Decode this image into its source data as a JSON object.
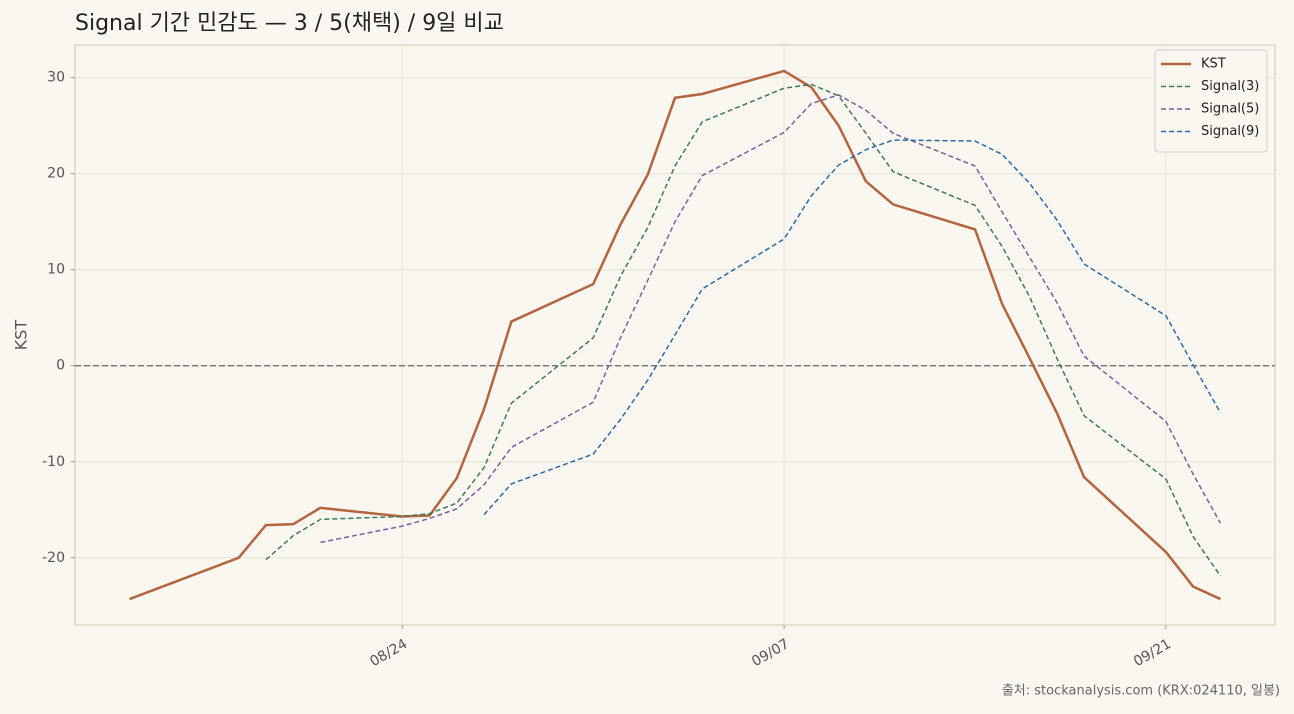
{
  "chart_data": {
    "type": "line",
    "title": "Signal 기간 민감도 — 3 / 5(채택) / 9일 비교",
    "y_label": "KST",
    "source": "출처: stockanalysis.com (KRX:024110, 일봉)",
    "x": [
      "08/14",
      "08/18",
      "08/19",
      "08/20",
      "08/21",
      "08/24",
      "08/25",
      "08/26",
      "08/27",
      "08/28",
      "08/31",
      "09/01",
      "09/02",
      "09/03",
      "09/04",
      "09/07",
      "09/08",
      "09/09",
      "09/10",
      "09/11",
      "09/14",
      "09/15",
      "09/16",
      "09/17",
      "09/18",
      "09/21",
      "09/22",
      "09/23"
    ],
    "series": [
      {
        "name": "KST",
        "color": "#b5643c",
        "dashed": false,
        "values": [
          -24.3,
          -20.0,
          -16.6,
          -16.5,
          -14.8,
          -15.7,
          -15.6,
          -11.7,
          -4.5,
          4.6,
          8.5,
          14.7,
          19.9,
          27.9,
          28.3,
          30.7,
          29.0,
          25.0,
          19.2,
          16.8,
          14.2,
          6.4,
          0.8,
          -4.9,
          -11.6,
          -19.4,
          -23.0,
          -24.3
        ]
      },
      {
        "name": "Signal(3)",
        "color": "#3d7a55",
        "dashed": true,
        "values": [
          null,
          null,
          -20.2,
          -17.7,
          -16.0,
          -15.7,
          -15.4,
          -14.3,
          -10.6,
          -3.9,
          2.9,
          9.3,
          14.4,
          20.8,
          25.4,
          28.9,
          29.3,
          28.1,
          24.2,
          20.2,
          16.7,
          12.4,
          7.2,
          0.8,
          -5.2,
          -11.8,
          -17.8,
          -21.9
        ]
      },
      {
        "name": "Signal(5)",
        "color": "#7a5fa0",
        "dashed": true,
        "values": [
          null,
          null,
          null,
          null,
          -18.4,
          -16.7,
          -15.9,
          -14.9,
          -12.4,
          -8.5,
          -3.8,
          2.9,
          8.9,
          15.0,
          19.8,
          24.3,
          27.3,
          28.2,
          26.6,
          24.2,
          20.8,
          16.0,
          11.3,
          6.6,
          1.0,
          -5.8,
          -11.3,
          -16.4
        ]
      },
      {
        "name": "Signal(9)",
        "color": "#2a6aa8",
        "dashed": true,
        "values": [
          null,
          null,
          null,
          null,
          null,
          null,
          null,
          null,
          -15.5,
          -12.3,
          -9.2,
          -5.6,
          -1.5,
          3.2,
          8.0,
          13.2,
          17.7,
          20.9,
          22.5,
          23.5,
          23.4,
          22.0,
          19.0,
          15.2,
          10.6,
          5.2,
          0.1,
          -4.9
        ]
      }
    ],
    "xlim": [
      "08/12",
      "09/25"
    ],
    "xticks": [
      "08/24",
      "09/07",
      "09/21"
    ],
    "ylim": [
      -27,
      33.4
    ],
    "yticks": [
      -20,
      -10,
      0,
      10,
      20,
      30
    ],
    "reference_line": 0,
    "grid": true,
    "legend": "upper-right"
  }
}
